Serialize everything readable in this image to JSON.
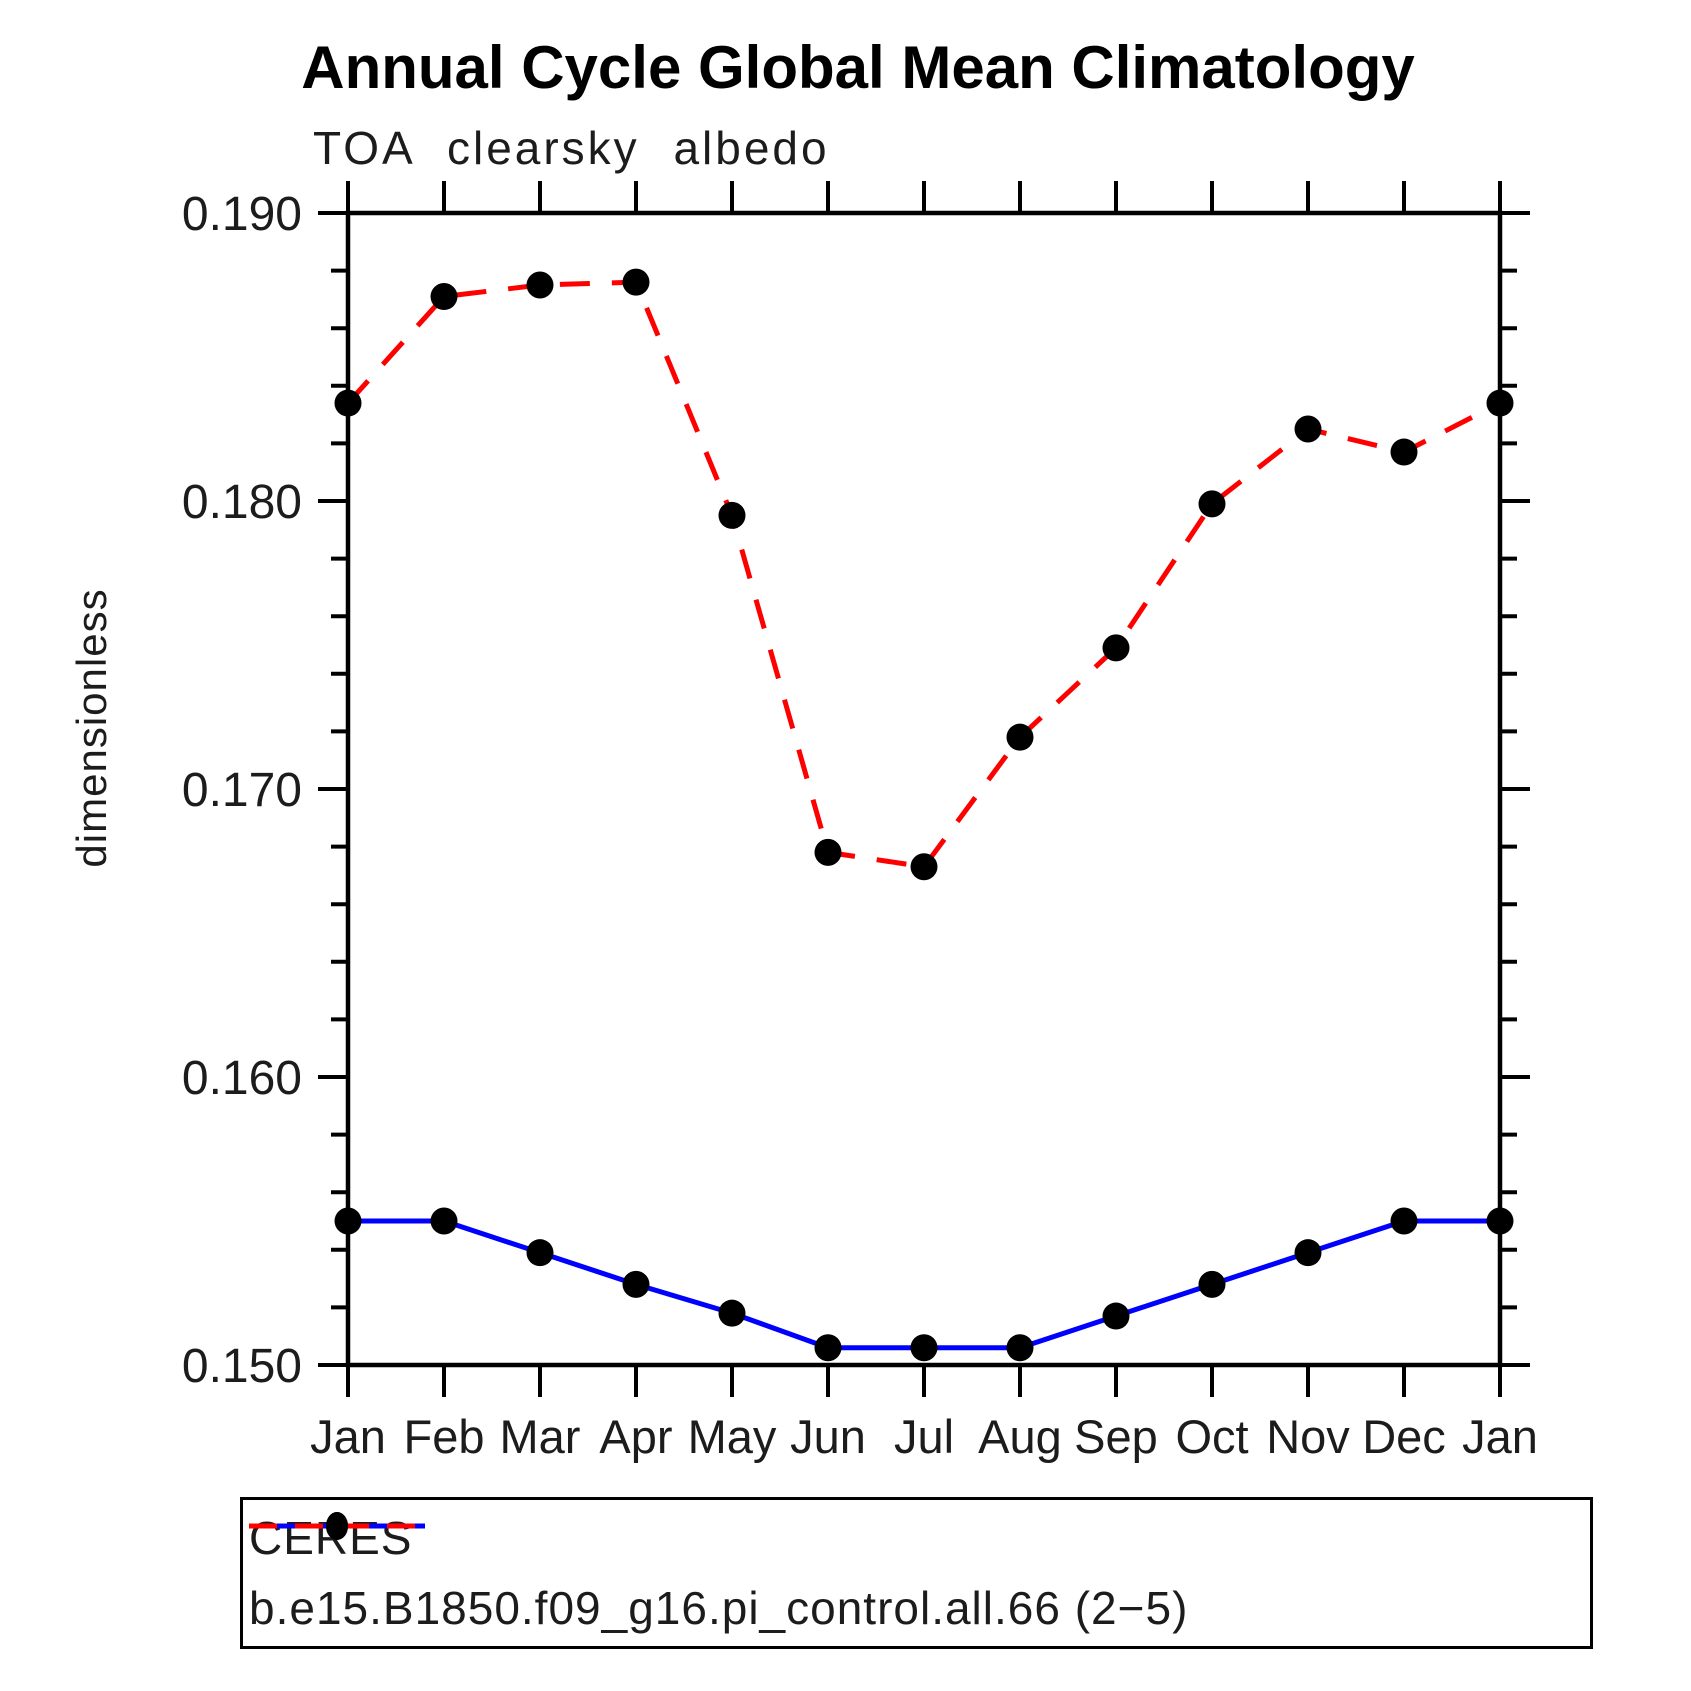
{
  "header": {
    "title": "Annual Cycle Global Mean Climatology",
    "subtitle": "TOA clearsky albedo"
  },
  "chart_data": {
    "type": "line",
    "title": "Annual Cycle Global Mean Climatology",
    "subtitle": "TOA clearsky albedo",
    "xlabel": "",
    "ylabel": "dimensionless",
    "categories": [
      "Jan",
      "Feb",
      "Mar",
      "Apr",
      "May",
      "Jun",
      "Jul",
      "Aug",
      "Sep",
      "Oct",
      "Nov",
      "Dec",
      "Jan"
    ],
    "ylim": [
      0.15,
      0.19
    ],
    "y_major_ticks": [
      0.15,
      0.16,
      0.17,
      0.18,
      0.19
    ],
    "y_tick_labels": [
      "0.150",
      "0.160",
      "0.170",
      "0.180",
      "0.190"
    ],
    "y_minor_step": 0.002,
    "grid": false,
    "legend_position": "bottom",
    "series": [
      {
        "name": "CERES",
        "color": "#0000ff",
        "style": "solid",
        "marker": "circle",
        "marker_color": "#000000",
        "values": [
          0.155,
          0.155,
          0.1539,
          0.1528,
          0.1518,
          0.1506,
          0.1506,
          0.1506,
          0.1517,
          0.1528,
          0.1539,
          0.155,
          0.155
        ]
      },
      {
        "name": "b.e15.B1850.f09_g16.pi_control.all.66 (2−5)",
        "color": "#ff0000",
        "style": "dashed",
        "marker": "circle",
        "marker_color": "#000000",
        "values": [
          0.1834,
          0.1871,
          0.1875,
          0.1876,
          0.1795,
          0.1678,
          0.1673,
          0.1718,
          0.1749,
          0.1799,
          0.1825,
          0.1817,
          0.1834
        ]
      }
    ]
  }
}
